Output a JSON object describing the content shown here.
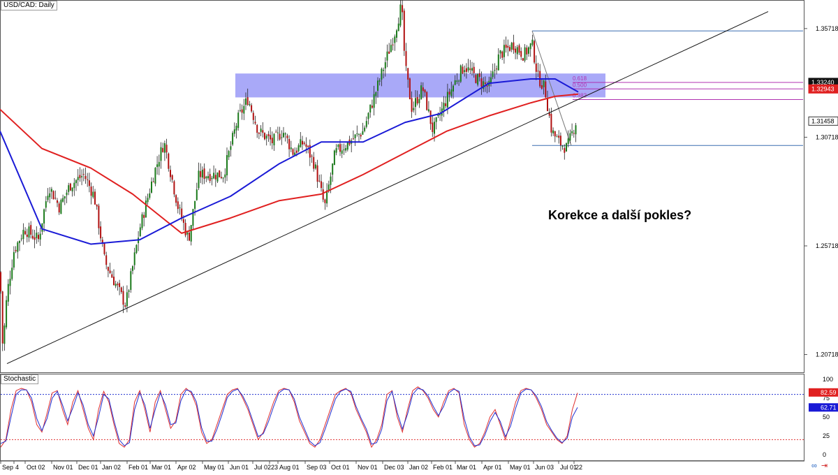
{
  "chart_title": "USD/CAD: Daily",
  "indicator_title": "Stochastic",
  "annotation": "Korekce a další pokles?",
  "icons": [
    "link-icon",
    "arrow-icon"
  ],
  "colors": {
    "bull": "#1b7a1b",
    "bear": "#b01010",
    "sma_blue": "#1a1ad6",
    "sma_red": "#e02020",
    "zone": "#8c8cf5",
    "fib": "#b030b0",
    "level": "#3a6fb0",
    "stoch_main": "#2030d0",
    "stoch_signal": "#e03030"
  },
  "chart_data": [
    {
      "type": "candlestick",
      "title": "USD/CAD: Daily",
      "ylim": [
        1.199,
        1.37
      ],
      "y_ticks": [
        "1.35718",
        "1.30718",
        "1.25718",
        "1.20718"
      ],
      "x_ticks": [
        "Sep",
        "4",
        "Oct 02",
        "Nov 01",
        "Dec 01",
        "Jan 02",
        "Feb 01",
        "Mar 01",
        "Apr 02",
        "May 01",
        "Jun 01",
        "Jul 02",
        "23",
        "Aug 01",
        "Sep 03",
        "Oct 01",
        "Nov 01",
        "Dec 03",
        "Jan 02",
        "Feb 01",
        "Mar 01",
        "Apr 01",
        "May 01",
        "Jun 03",
        "Jul 01",
        "22"
      ],
      "price_path": [
        [
          0,
          1.245
        ],
        [
          4,
          1.21
        ],
        [
          10,
          1.235
        ],
        [
          20,
          1.255
        ],
        [
          35,
          1.265
        ],
        [
          55,
          1.26
        ],
        [
          70,
          1.285
        ],
        [
          85,
          1.275
        ],
        [
          100,
          1.285
        ],
        [
          120,
          1.29
        ],
        [
          135,
          1.28
        ],
        [
          150,
          1.25
        ],
        [
          165,
          1.24
        ],
        [
          180,
          1.23
        ],
        [
          200,
          1.265
        ],
        [
          220,
          1.29
        ],
        [
          235,
          1.305
        ],
        [
          255,
          1.275
        ],
        [
          270,
          1.26
        ],
        [
          285,
          1.29
        ],
        [
          300,
          1.29
        ],
        [
          320,
          1.29
        ],
        [
          340,
          1.315
        ],
        [
          355,
          1.325
        ],
        [
          370,
          1.31
        ],
        [
          390,
          1.305
        ],
        [
          405,
          1.31
        ],
        [
          420,
          1.3
        ],
        [
          435,
          1.305
        ],
        [
          450,
          1.295
        ],
        [
          465,
          1.275
        ],
        [
          480,
          1.3
        ],
        [
          500,
          1.305
        ],
        [
          520,
          1.31
        ],
        [
          540,
          1.33
        ],
        [
          555,
          1.345
        ],
        [
          565,
          1.355
        ],
        [
          575,
          1.368
        ],
        [
          580,
          1.34
        ],
        [
          590,
          1.32
        ],
        [
          605,
          1.33
        ],
        [
          620,
          1.31
        ],
        [
          640,
          1.325
        ],
        [
          655,
          1.335
        ],
        [
          665,
          1.34
        ],
        [
          680,
          1.335
        ],
        [
          700,
          1.33
        ],
        [
          715,
          1.345
        ],
        [
          735,
          1.35
        ],
        [
          750,
          1.345
        ],
        [
          762,
          1.35
        ],
        [
          770,
          1.335
        ],
        [
          780,
          1.33
        ],
        [
          790,
          1.31
        ],
        [
          800,
          1.305
        ],
        [
          812,
          1.302
        ],
        [
          818,
          1.308
        ],
        [
          825,
          1.3146
        ]
      ],
      "sma_blue": [
        [
          0,
          1.31
        ],
        [
          60,
          1.265
        ],
        [
          130,
          1.258
        ],
        [
          200,
          1.26
        ],
        [
          260,
          1.27
        ],
        [
          330,
          1.28
        ],
        [
          400,
          1.295
        ],
        [
          460,
          1.305
        ],
        [
          520,
          1.305
        ],
        [
          580,
          1.314
        ],
        [
          630,
          1.318
        ],
        [
          700,
          1.332
        ],
        [
          760,
          1.334
        ],
        [
          795,
          1.334
        ],
        [
          828,
          1.328
        ]
      ],
      "sma_red": [
        [
          0,
          1.32
        ],
        [
          60,
          1.302
        ],
        [
          130,
          1.293
        ],
        [
          190,
          1.281
        ],
        [
          260,
          1.263
        ],
        [
          330,
          1.27
        ],
        [
          400,
          1.278
        ],
        [
          460,
          1.281
        ],
        [
          520,
          1.29
        ],
        [
          580,
          1.3
        ],
        [
          640,
          1.31
        ],
        [
          700,
          1.317
        ],
        [
          760,
          1.323
        ],
        [
          795,
          1.326
        ],
        [
          828,
          1.327
        ]
      ],
      "trendline": [
        [
          10,
          1.203
        ],
        [
          1100,
          1.365
        ]
      ],
      "resistance_zone": [
        1.3255,
        1.3365
      ],
      "fib_levels": [
        {
          "label": "0.618",
          "value": 1.3324
        },
        {
          "label": "0.500",
          "value": 1.3294
        },
        {
          "label": "0.382",
          "value": 1.3245
        }
      ],
      "swing_high": 1.3561,
      "swing_low": 1.3034,
      "price_labels": [
        {
          "label": "1.33240",
          "value": 1.3324,
          "bg": "#111111"
        },
        {
          "label": "1.32943",
          "value": 1.3294,
          "bg": "#e02020"
        },
        {
          "label": "1.31458",
          "value": 1.3146,
          "bg": "#ffffff"
        }
      ]
    },
    {
      "type": "line",
      "title": "Stochastic",
      "ylim": [
        0,
        100
      ],
      "y_ticks": [
        "100",
        "75",
        "50",
        "25",
        "0"
      ],
      "levels": [
        80,
        20
      ],
      "main_label": "82.59",
      "signal_label": "62.71",
      "series": [
        {
          "values": [
            10,
            20,
            60,
            85,
            88,
            86,
            70,
            40,
            30,
            55,
            82,
            85,
            60,
            40,
            70,
            85,
            60,
            35,
            20,
            60,
            84,
            70,
            40,
            15,
            10,
            20,
            70,
            85,
            60,
            30,
            70,
            85,
            60,
            35,
            45,
            80,
            88,
            82,
            65,
            30,
            15,
            20,
            40,
            60,
            80,
            86,
            88,
            75,
            60,
            40,
            20,
            30,
            50,
            70,
            85,
            88,
            86,
            70,
            45,
            30,
            15,
            10,
            20,
            40,
            60,
            80,
            85,
            88,
            82,
            60,
            45,
            30,
            10,
            20,
            40,
            80,
            85,
            50,
            30,
            60,
            85,
            90,
            85,
            75,
            60,
            50,
            70,
            85,
            88,
            82,
            40,
            20,
            10,
            15,
            30,
            50,
            60,
            40,
            20,
            45,
            70,
            85,
            88,
            86,
            75,
            60,
            40,
            30,
            20,
            15,
            25,
            60,
            82
          ]
        },
        {
          "values": [
            15,
            18,
            50,
            80,
            86,
            86,
            75,
            48,
            32,
            48,
            75,
            84,
            66,
            45,
            62,
            82,
            66,
            40,
            25,
            50,
            80,
            74,
            45,
            20,
            12,
            16,
            60,
            82,
            66,
            35,
            60,
            82,
            66,
            40,
            42,
            72,
            86,
            84,
            70,
            36,
            18,
            18,
            34,
            54,
            76,
            84,
            87,
            78,
            64,
            44,
            24,
            28,
            44,
            64,
            82,
            87,
            86,
            74,
            50,
            34,
            18,
            12,
            16,
            34,
            54,
            74,
            84,
            87,
            84,
            64,
            48,
            34,
            14,
            16,
            34,
            72,
            84,
            56,
            34,
            54,
            80,
            88,
            86,
            78,
            64,
            52,
            64,
            82,
            87,
            84,
            48,
            24,
            12,
            13,
            26,
            44,
            56,
            44,
            24,
            38,
            62,
            82,
            87,
            86,
            78,
            64,
            44,
            32,
            22,
            16,
            22,
            50,
            62.71
          ]
        }
      ]
    }
  ]
}
